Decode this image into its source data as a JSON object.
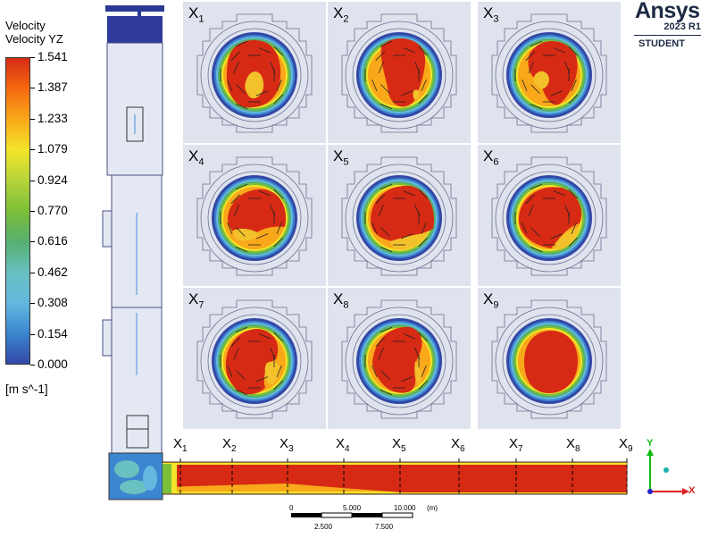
{
  "legend": {
    "title_line1": "Velocity",
    "title_line2": "Velocity YZ",
    "ticks": [
      "1.541",
      "1.387",
      "1.233",
      "1.079",
      "0.924",
      "0.770",
      "0.616",
      "0.462",
      "0.308",
      "0.154",
      "0.000"
    ],
    "unit": "[m s^-1]",
    "colors": [
      "#d62a14",
      "#f56a10",
      "#f9a81a",
      "#f3e52a",
      "#b6d43a",
      "#7cbf38",
      "#56b070",
      "#69c0c0",
      "#64b8e0",
      "#3b86cf",
      "#3347a6"
    ]
  },
  "logo": {
    "brand": "Ansys",
    "version": "2023 R1",
    "edition": "STUDENT"
  },
  "sections": [
    {
      "base": "X",
      "sub": "1"
    },
    {
      "base": "X",
      "sub": "2"
    },
    {
      "base": "X",
      "sub": "3"
    },
    {
      "base": "X",
      "sub": "4"
    },
    {
      "base": "X",
      "sub": "5"
    },
    {
      "base": "X",
      "sub": "6"
    },
    {
      "base": "X",
      "sub": "7"
    },
    {
      "base": "X",
      "sub": "8"
    },
    {
      "base": "X",
      "sub": "9"
    }
  ],
  "scale": {
    "label_0": "0",
    "label_5": "5.000",
    "label_10": "10.000",
    "unit": "(m)",
    "label_2_5": "2.500",
    "label_7_5": "7.500"
  },
  "triad": {
    "y": "Y",
    "x": "X"
  }
}
